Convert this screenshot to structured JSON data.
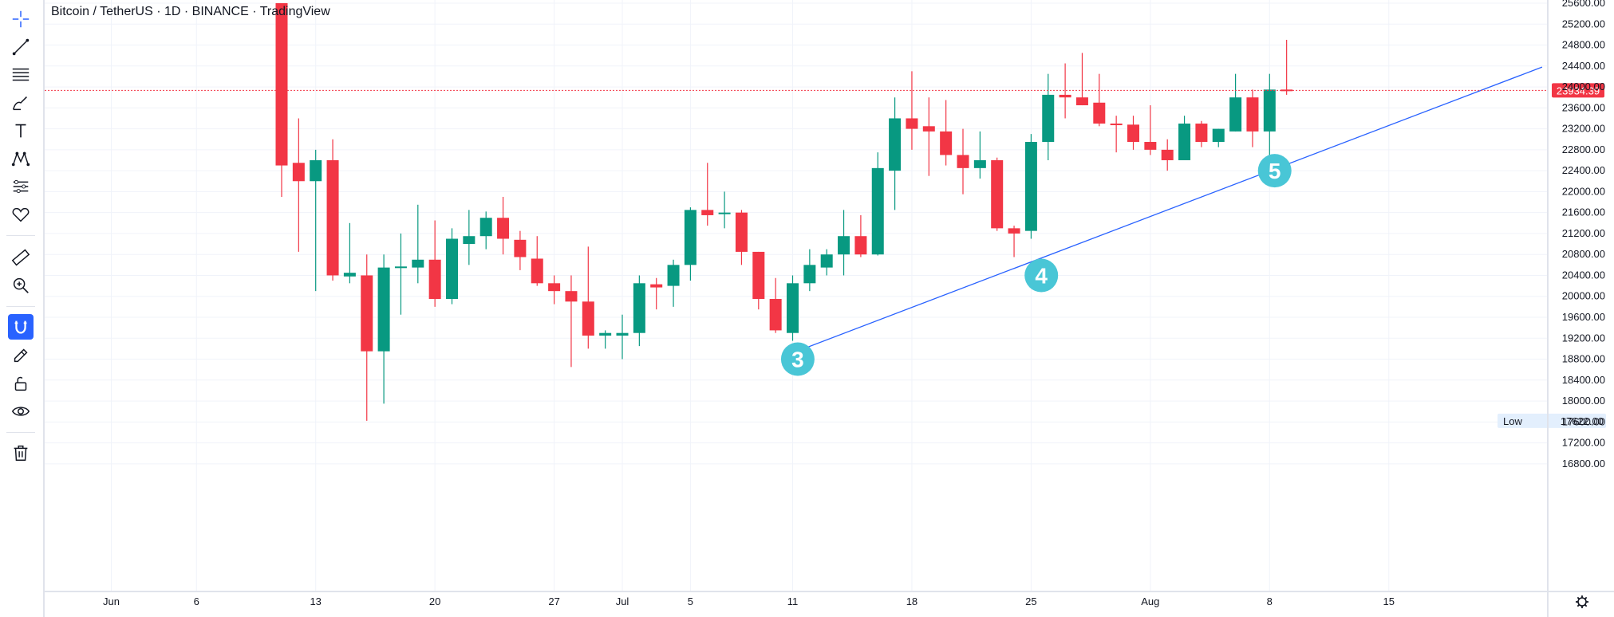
{
  "title": "Bitcoin / TetherUS · 1D · BINANCE · TradingView",
  "colors": {
    "up": "#089981",
    "down": "#f23645",
    "trend": "#2962ff",
    "badge": "#49c6d6",
    "grid": "#f0f3fa"
  },
  "toolbar": {
    "items": [
      {
        "name": "crosshair-icon"
      },
      {
        "name": "trend-line-icon"
      },
      {
        "name": "fib-retracement-icon"
      },
      {
        "name": "brush-icon"
      },
      {
        "name": "text-icon"
      },
      {
        "name": "pattern-icon"
      },
      {
        "name": "prediction-icon"
      },
      {
        "name": "heart-icon"
      },
      {
        "name": "ruler-icon"
      },
      {
        "name": "zoom-in-icon"
      },
      {
        "name": "magnet-icon"
      },
      {
        "name": "stay-drawing-icon"
      },
      {
        "name": "lock-icon"
      },
      {
        "name": "eye-icon"
      },
      {
        "name": "trash-icon"
      }
    ]
  },
  "chart_data": {
    "type": "candlestick",
    "y_ticks": [
      "25600.00",
      "25200.00",
      "24800.00",
      "24400.00",
      "24000.00",
      "23600.00",
      "23200.00",
      "22800.00",
      "22400.00",
      "22000.00",
      "21600.00",
      "21200.00",
      "20800.00",
      "20400.00",
      "20000.00",
      "19600.00",
      "19200.00",
      "18800.00",
      "18400.00",
      "18000.00",
      "17600.00",
      "17200.00",
      "16800.00"
    ],
    "x_ticks": [
      {
        "label": "Jun",
        "index": -10
      },
      {
        "label": "6",
        "index": -5
      },
      {
        "label": "13",
        "index": 2
      },
      {
        "label": "20",
        "index": 9
      },
      {
        "label": "27",
        "index": 16
      },
      {
        "label": "Jul",
        "index": 20
      },
      {
        "label": "5",
        "index": 24
      },
      {
        "label": "11",
        "index": 30
      },
      {
        "label": "18",
        "index": 37
      },
      {
        "label": "25",
        "index": 44
      },
      {
        "label": "Aug",
        "index": 51
      },
      {
        "label": "8",
        "index": 58
      },
      {
        "label": "15",
        "index": 65
      }
    ],
    "candles": [
      {
        "o": 25600,
        "h": 25600,
        "l": 21900,
        "c": 22500
      },
      {
        "o": 22550,
        "h": 23400,
        "l": 20850,
        "c": 22200
      },
      {
        "o": 22200,
        "h": 22800,
        "l": 20100,
        "c": 22600
      },
      {
        "o": 22600,
        "h": 23000,
        "l": 20300,
        "c": 20400
      },
      {
        "o": 20380,
        "h": 21400,
        "l": 20250,
        "c": 20450
      },
      {
        "o": 20400,
        "h": 20800,
        "l": 17622,
        "c": 18950
      },
      {
        "o": 18950,
        "h": 20800,
        "l": 17950,
        "c": 20550
      },
      {
        "o": 20560,
        "h": 21200,
        "l": 19650,
        "c": 20570
      },
      {
        "o": 20550,
        "h": 21750,
        "l": 20250,
        "c": 20700
      },
      {
        "o": 20700,
        "h": 21450,
        "l": 19800,
        "c": 19950
      },
      {
        "o": 19950,
        "h": 21300,
        "l": 19850,
        "c": 21100
      },
      {
        "o": 21000,
        "h": 21650,
        "l": 20600,
        "c": 21150
      },
      {
        "o": 21150,
        "h": 21620,
        "l": 20900,
        "c": 21500
      },
      {
        "o": 21500,
        "h": 21900,
        "l": 20800,
        "c": 21100
      },
      {
        "o": 21080,
        "h": 21250,
        "l": 20500,
        "c": 20750
      },
      {
        "o": 20720,
        "h": 21150,
        "l": 20200,
        "c": 20250
      },
      {
        "o": 20250,
        "h": 20400,
        "l": 19850,
        "c": 20100
      },
      {
        "o": 20100,
        "h": 20400,
        "l": 18650,
        "c": 19900
      },
      {
        "o": 19900,
        "h": 20950,
        "l": 19000,
        "c": 19250
      },
      {
        "o": 19250,
        "h": 19350,
        "l": 19000,
        "c": 19300
      },
      {
        "o": 19250,
        "h": 19650,
        "l": 18800,
        "c": 19300
      },
      {
        "o": 19300,
        "h": 20400,
        "l": 19050,
        "c": 20250
      },
      {
        "o": 20230,
        "h": 20350,
        "l": 19750,
        "c": 20170
      },
      {
        "o": 20200,
        "h": 20700,
        "l": 19800,
        "c": 20600
      },
      {
        "o": 20600,
        "h": 21700,
        "l": 20300,
        "c": 21650
      },
      {
        "o": 21650,
        "h": 22550,
        "l": 21350,
        "c": 21550
      },
      {
        "o": 21600,
        "h": 22000,
        "l": 21300,
        "c": 21600
      },
      {
        "o": 21600,
        "h": 21650,
        "l": 20600,
        "c": 20850
      },
      {
        "o": 20850,
        "h": 20850,
        "l": 19750,
        "c": 19950
      },
      {
        "o": 19950,
        "h": 20350,
        "l": 19300,
        "c": 19350
      },
      {
        "o": 19300,
        "h": 20400,
        "l": 19150,
        "c": 20250
      },
      {
        "o": 20250,
        "h": 20900,
        "l": 20100,
        "c": 20600
      },
      {
        "o": 20550,
        "h": 20900,
        "l": 20400,
        "c": 20800
      },
      {
        "o": 20800,
        "h": 21650,
        "l": 20400,
        "c": 21150
      },
      {
        "o": 21150,
        "h": 21550,
        "l": 20750,
        "c": 20800
      },
      {
        "o": 20800,
        "h": 22750,
        "l": 20780,
        "c": 22450
      },
      {
        "o": 22400,
        "h": 23800,
        "l": 21650,
        "c": 23400
      },
      {
        "o": 23400,
        "h": 24300,
        "l": 22800,
        "c": 23200
      },
      {
        "o": 23250,
        "h": 23800,
        "l": 22300,
        "c": 23150
      },
      {
        "o": 23150,
        "h": 23750,
        "l": 22500,
        "c": 22700
      },
      {
        "o": 22700,
        "h": 23200,
        "l": 21950,
        "c": 22450
      },
      {
        "o": 22450,
        "h": 23150,
        "l": 22250,
        "c": 22600
      },
      {
        "o": 22600,
        "h": 22650,
        "l": 21250,
        "c": 21300
      },
      {
        "o": 21300,
        "h": 21350,
        "l": 20750,
        "c": 21200
      },
      {
        "o": 21250,
        "h": 23100,
        "l": 21100,
        "c": 22950
      },
      {
        "o": 22950,
        "h": 24250,
        "l": 22600,
        "c": 23850
      },
      {
        "o": 23850,
        "h": 24450,
        "l": 23400,
        "c": 23800
      },
      {
        "o": 23800,
        "h": 24650,
        "l": 23650,
        "c": 23650
      },
      {
        "o": 23700,
        "h": 24250,
        "l": 23250,
        "c": 23300
      },
      {
        "o": 23300,
        "h": 23450,
        "l": 22750,
        "c": 23280
      },
      {
        "o": 23280,
        "h": 23450,
        "l": 22800,
        "c": 22950
      },
      {
        "o": 22950,
        "h": 23650,
        "l": 22700,
        "c": 22800
      },
      {
        "o": 22800,
        "h": 23000,
        "l": 22400,
        "c": 22600
      },
      {
        "o": 22600,
        "h": 23450,
        "l": 22600,
        "c": 23300
      },
      {
        "o": 23300,
        "h": 23350,
        "l": 22850,
        "c": 22950
      },
      {
        "o": 22950,
        "h": 23200,
        "l": 22850,
        "c": 23200
      },
      {
        "o": 23150,
        "h": 24250,
        "l": 23150,
        "c": 23800
      },
      {
        "o": 23800,
        "h": 23950,
        "l": 22850,
        "c": 23150
      },
      {
        "o": 23150,
        "h": 24250,
        "l": 22650,
        "c": 23950
      },
      {
        "o": 23950,
        "h": 24900,
        "l": 23850,
        "c": 23934.39
      }
    ],
    "trendline": {
      "start": {
        "index": 30,
        "price": 18920
      },
      "end": {
        "index": 74,
        "price": 24380
      }
    },
    "labels": [
      {
        "text": "3",
        "index": 30.3,
        "price": 18800
      },
      {
        "text": "4",
        "index": 44.6,
        "price": 20400
      },
      {
        "text": "5",
        "index": 58.3,
        "price": 22400
      }
    ],
    "last_price": {
      "value": 23934.39,
      "label": "23934.39"
    },
    "low_marker": {
      "label": "Low",
      "value": "17622.00"
    }
  }
}
